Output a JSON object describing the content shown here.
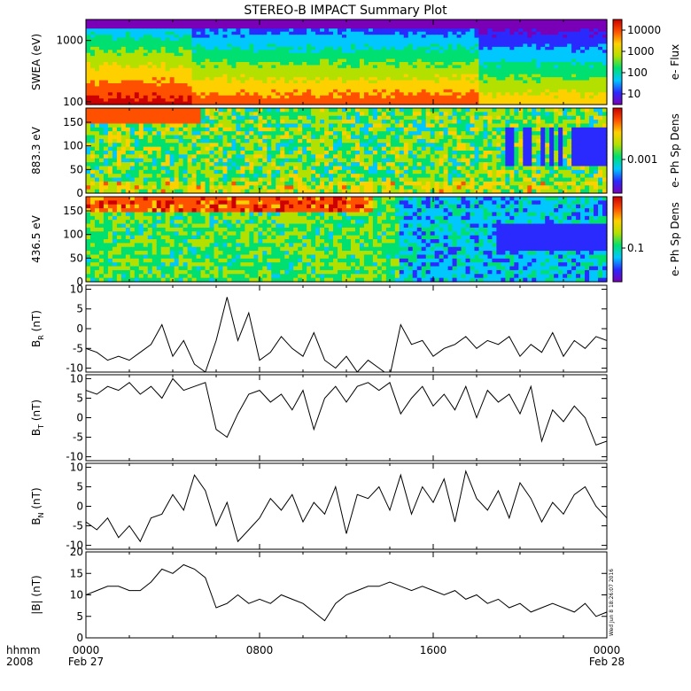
{
  "title": "STEREO-B IMPACT Summary Plot",
  "x_axis": {
    "row1_label": "hhmm",
    "row2_label": "2008",
    "ticks": [
      {
        "t": 0,
        "time": "0000",
        "date": "Feb 27"
      },
      {
        "t": 8,
        "time": "0800",
        "date": ""
      },
      {
        "t": 16,
        "time": "1600",
        "date": ""
      },
      {
        "t": 24,
        "time": "0000",
        "date": "Feb 28"
      }
    ]
  },
  "timestamp_text": "Wed Jun  8 18:26:07 2016",
  "colorscale": [
    "#7a00b8",
    "#2a2aff",
    "#00c8ff",
    "#00e070",
    "#b4e000",
    "#ffd000",
    "#ff5000",
    "#cc0000"
  ],
  "chart_data": [
    {
      "type": "heatmap",
      "ylabel": "SWEA (eV)",
      "yscale": "log",
      "ylim": [
        90,
        2200
      ],
      "yticks": [
        "100",
        "1000"
      ],
      "colorbar": {
        "label": "e- Flux",
        "scale": "log",
        "ticks": [
          "10",
          "100",
          "1000",
          "10000"
        ]
      }
    },
    {
      "type": "heatmap",
      "ylabel": "883.3 eV",
      "ylim": [
        0,
        180
      ],
      "yticks": [
        "0",
        "50",
        "100",
        "150"
      ],
      "colorbar": {
        "label": "e- Ph Sp Dens",
        "scale": "log",
        "ticks": [
          "0.001"
        ]
      }
    },
    {
      "type": "heatmap",
      "ylabel": "436.5 eV",
      "ylim": [
        0,
        180
      ],
      "yticks": [
        "0",
        "50",
        "100",
        "150"
      ],
      "colorbar": {
        "label": "e- Ph Sp Dens",
        "scale": "log",
        "ticks": [
          "0.1"
        ]
      }
    },
    {
      "type": "line",
      "ylabel": "B",
      "ylabel_sub": "R",
      "ylabel_unit": "(nT)",
      "ylim": [
        -11,
        11
      ],
      "yticks": [
        -10,
        -5,
        0,
        5,
        10
      ],
      "x": [
        0,
        0.5,
        1,
        1.5,
        2,
        2.5,
        3,
        3.5,
        4,
        4.5,
        5,
        5.5,
        6,
        6.5,
        7,
        7.5,
        8,
        8.5,
        9,
        9.5,
        10,
        10.5,
        11,
        11.5,
        12,
        12.5,
        13,
        13.5,
        14,
        14.5,
        15,
        15.5,
        16,
        16.5,
        17,
        17.5,
        18,
        18.5,
        19,
        19.5,
        20,
        20.5,
        21,
        21.5,
        22,
        22.5,
        23,
        23.5,
        24
      ],
      "values": [
        -5,
        -6,
        -8,
        -7,
        -8,
        -6,
        -4,
        1,
        -7,
        -3,
        -9,
        -11,
        -3,
        8,
        -3,
        4,
        -8,
        -6,
        -2,
        -5,
        -7,
        -1,
        -8,
        -10,
        -7,
        -11,
        -8,
        -10,
        -12,
        1,
        -4,
        -3,
        -7,
        -5,
        -4,
        -2,
        -5,
        -3,
        -4,
        -2,
        -7,
        -4,
        -6,
        -1,
        -7,
        -3,
        -5,
        -2,
        -3
      ]
    },
    {
      "type": "line",
      "ylabel": "B",
      "ylabel_sub": "T",
      "ylabel_unit": "(nT)",
      "ylim": [
        -11,
        11
      ],
      "yticks": [
        -10,
        -5,
        0,
        5,
        10
      ],
      "x": [
        0,
        0.5,
        1,
        1.5,
        2,
        2.5,
        3,
        3.5,
        4,
        4.5,
        5,
        5.5,
        6,
        6.5,
        7,
        7.5,
        8,
        8.5,
        9,
        9.5,
        10,
        10.5,
        11,
        11.5,
        12,
        12.5,
        13,
        13.5,
        14,
        14.5,
        15,
        15.5,
        16,
        16.5,
        17,
        17.5,
        18,
        18.5,
        19,
        19.5,
        20,
        20.5,
        21,
        21.5,
        22,
        22.5,
        23,
        23.5,
        24
      ],
      "values": [
        7,
        6,
        8,
        7,
        9,
        6,
        8,
        5,
        10,
        7,
        8,
        9,
        -3,
        -5,
        1,
        6,
        7,
        4,
        6,
        2,
        7,
        -3,
        5,
        8,
        4,
        8,
        9,
        7,
        9,
        1,
        5,
        8,
        3,
        6,
        2,
        8,
        0,
        7,
        4,
        6,
        1,
        8,
        -6,
        2,
        -1,
        3,
        0,
        -7,
        -6
      ]
    },
    {
      "type": "line",
      "ylabel": "B",
      "ylabel_sub": "N",
      "ylabel_unit": "(nT)",
      "ylim": [
        -11,
        11
      ],
      "yticks": [
        -10,
        -5,
        0,
        5,
        10
      ],
      "x": [
        0,
        0.5,
        1,
        1.5,
        2,
        2.5,
        3,
        3.5,
        4,
        4.5,
        5,
        5.5,
        6,
        6.5,
        7,
        7.5,
        8,
        8.5,
        9,
        9.5,
        10,
        10.5,
        11,
        11.5,
        12,
        12.5,
        13,
        13.5,
        14,
        14.5,
        15,
        15.5,
        16,
        16.5,
        17,
        17.5,
        18,
        18.5,
        19,
        19.5,
        20,
        20.5,
        21,
        21.5,
        22,
        22.5,
        23,
        23.5,
        24
      ],
      "values": [
        -4,
        -6,
        -3,
        -8,
        -5,
        -9,
        -3,
        -2,
        3,
        -1,
        8,
        4,
        -5,
        1,
        -9,
        -6,
        -3,
        2,
        -1,
        3,
        -4,
        1,
        -2,
        5,
        -7,
        3,
        2,
        5,
        -1,
        8,
        -2,
        5,
        1,
        7,
        -4,
        9,
        2,
        -1,
        4,
        -3,
        6,
        2,
        -4,
        1,
        -2,
        3,
        5,
        0,
        -3
      ]
    },
    {
      "type": "line",
      "ylabel": "|B|",
      "ylabel_unit": "(nT)",
      "ylim": [
        0,
        20
      ],
      "yticks": [
        0,
        5,
        10,
        15,
        20
      ],
      "x": [
        0,
        0.5,
        1,
        1.5,
        2,
        2.5,
        3,
        3.5,
        4,
        4.5,
        5,
        5.5,
        6,
        6.5,
        7,
        7.5,
        8,
        8.5,
        9,
        9.5,
        10,
        10.5,
        11,
        11.5,
        12,
        12.5,
        13,
        13.5,
        14,
        14.5,
        15,
        15.5,
        16,
        16.5,
        17,
        17.5,
        18,
        18.5,
        19,
        19.5,
        20,
        20.5,
        21,
        21.5,
        22,
        22.5,
        23,
        23.5,
        24
      ],
      "values": [
        10,
        11,
        12,
        12,
        11,
        11,
        13,
        16,
        15,
        17,
        16,
        14,
        7,
        8,
        10,
        8,
        9,
        8,
        10,
        9,
        8,
        6,
        4,
        8,
        10,
        11,
        12,
        12,
        13,
        12,
        11,
        12,
        11,
        10,
        11,
        9,
        10,
        8,
        9,
        7,
        8,
        6,
        7,
        8,
        7,
        6,
        8,
        5,
        6
      ]
    }
  ]
}
